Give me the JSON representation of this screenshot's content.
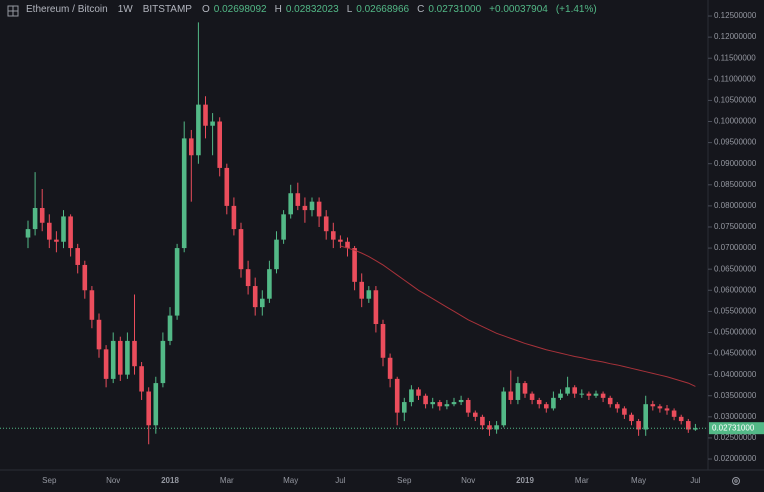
{
  "chart_data": {
    "type": "candlestick",
    "legend": {
      "symbol": "Ethereum / Bitcoin",
      "interval": "1W",
      "exchange": "BITSTAMP",
      "open_label": "O",
      "open": "0.02698092",
      "high_label": "H",
      "high": "0.02832023",
      "low_label": "L",
      "low": "0.02668966",
      "close_label": "C",
      "close": "0.02731000",
      "change": "+0.00037904",
      "change_pct": "(+1.41%)"
    },
    "categories": [
      null,
      null,
      null,
      "Sep",
      null,
      null,
      null,
      null,
      null,
      null,
      null,
      null,
      "Nov",
      null,
      null,
      null,
      null,
      null,
      null,
      null,
      "2018",
      null,
      null,
      null,
      null,
      null,
      null,
      null,
      "Mar",
      null,
      null,
      null,
      null,
      null,
      null,
      null,
      null,
      "May",
      null,
      null,
      null,
      null,
      null,
      null,
      "Jul",
      null,
      null,
      null,
      null,
      null,
      null,
      null,
      null,
      "Sep",
      null,
      null,
      null,
      null,
      null,
      null,
      null,
      null,
      "Nov",
      null,
      null,
      null,
      null,
      null,
      null,
      null,
      "2019",
      null,
      null,
      null,
      null,
      null,
      null,
      null,
      "Mar",
      null,
      null,
      null,
      null,
      null,
      null,
      null,
      "May",
      null,
      null,
      null,
      null,
      null,
      null,
      null,
      "Jul"
    ],
    "open": [
      0.0725,
      0.0745,
      0.0795,
      0.076,
      0.072,
      0.0715,
      0.0775,
      0.07,
      0.066,
      0.06,
      0.053,
      0.046,
      0.039,
      0.048,
      0.04,
      0.048,
      0.042,
      0.036,
      0.028,
      0.038,
      0.048,
      0.054,
      0.07,
      0.096,
      0.092,
      0.104,
      0.099,
      0.1,
      0.089,
      0.08,
      0.0745,
      0.065,
      0.061,
      0.056,
      0.058,
      0.065,
      0.072,
      0.078,
      0.083,
      0.08,
      0.079,
      0.081,
      0.0775,
      0.074,
      0.072,
      0.0715,
      0.07,
      0.062,
      0.058,
      0.06,
      0.052,
      0.044,
      0.039,
      0.031,
      0.0335,
      0.0365,
      0.035,
      0.033,
      0.0335,
      0.0325,
      0.033,
      0.0335,
      0.034,
      0.031,
      0.03,
      0.028,
      0.027,
      0.028,
      0.036,
      0.034,
      0.038,
      0.0355,
      0.034,
      0.033,
      0.032,
      0.0345,
      0.0355,
      0.037,
      0.0355,
      0.0355,
      0.035,
      0.0355,
      0.0345,
      0.033,
      0.032,
      0.0305,
      0.029,
      0.027,
      0.033,
      0.0325,
      0.032,
      0.0315,
      0.03,
      0.029,
      0.02698092
    ],
    "high": [
      0.0765,
      0.088,
      0.084,
      0.078,
      0.074,
      0.079,
      0.078,
      0.071,
      0.067,
      0.061,
      0.0545,
      0.047,
      0.05,
      0.049,
      0.05,
      0.059,
      0.043,
      0.037,
      0.0395,
      0.05,
      0.056,
      0.071,
      0.1,
      0.098,
      0.1235,
      0.106,
      0.102,
      0.101,
      0.09,
      0.082,
      0.076,
      0.067,
      0.063,
      0.06,
      0.067,
      0.074,
      0.079,
      0.085,
      0.0855,
      0.082,
      0.082,
      0.082,
      0.079,
      0.076,
      0.073,
      0.0725,
      0.0705,
      0.064,
      0.061,
      0.061,
      0.053,
      0.045,
      0.0395,
      0.0345,
      0.0375,
      0.037,
      0.0355,
      0.0345,
      0.034,
      0.034,
      0.0345,
      0.035,
      0.0345,
      0.0315,
      0.0305,
      0.029,
      0.029,
      0.037,
      0.041,
      0.0395,
      0.0385,
      0.036,
      0.0345,
      0.0335,
      0.036,
      0.0365,
      0.0395,
      0.0375,
      0.0365,
      0.036,
      0.0362,
      0.036,
      0.035,
      0.0335,
      0.0325,
      0.031,
      0.0295,
      0.035,
      0.0338,
      0.033,
      0.0328,
      0.032,
      0.0305,
      0.0295,
      0.02832023
    ],
    "low": [
      0.07,
      0.073,
      0.074,
      0.07,
      0.069,
      0.07,
      0.068,
      0.064,
      0.058,
      0.051,
      0.044,
      0.037,
      0.038,
      0.0385,
      0.039,
      0.04,
      0.034,
      0.0235,
      0.026,
      0.037,
      0.047,
      0.053,
      0.069,
      0.081,
      0.09,
      0.096,
      0.092,
      0.087,
      0.078,
      0.073,
      0.063,
      0.059,
      0.054,
      0.054,
      0.057,
      0.064,
      0.071,
      0.077,
      0.079,
      0.076,
      0.0775,
      0.075,
      0.072,
      0.07,
      0.07,
      0.068,
      0.06,
      0.056,
      0.057,
      0.05,
      0.042,
      0.037,
      0.028,
      0.029,
      0.0325,
      0.034,
      0.032,
      0.032,
      0.0315,
      0.0318,
      0.0325,
      0.0328,
      0.03,
      0.029,
      0.027,
      0.0255,
      0.026,
      0.0275,
      0.033,
      0.033,
      0.0345,
      0.033,
      0.032,
      0.031,
      0.0315,
      0.034,
      0.035,
      0.0345,
      0.0345,
      0.034,
      0.0345,
      0.0335,
      0.0322,
      0.031,
      0.0295,
      0.028,
      0.0255,
      0.0255,
      0.0315,
      0.031,
      0.0305,
      0.0292,
      0.0282,
      0.0262,
      0.02668966
    ],
    "close": [
      0.0745,
      0.0795,
      0.076,
      0.072,
      0.0715,
      0.0775,
      0.07,
      0.066,
      0.06,
      0.053,
      0.046,
      0.039,
      0.048,
      0.04,
      0.048,
      0.042,
      0.036,
      0.028,
      0.038,
      0.048,
      0.054,
      0.07,
      0.096,
      0.092,
      0.104,
      0.099,
      0.1,
      0.089,
      0.08,
      0.0745,
      0.065,
      0.061,
      0.056,
      0.058,
      0.065,
      0.072,
      0.078,
      0.083,
      0.08,
      0.079,
      0.081,
      0.0775,
      0.074,
      0.072,
      0.0715,
      0.07,
      0.062,
      0.058,
      0.06,
      0.052,
      0.044,
      0.039,
      0.031,
      0.0335,
      0.0365,
      0.035,
      0.033,
      0.0335,
      0.0325,
      0.033,
      0.0335,
      0.034,
      0.031,
      0.03,
      0.028,
      0.027,
      0.028,
      0.036,
      0.034,
      0.038,
      0.0355,
      0.034,
      0.033,
      0.032,
      0.0345,
      0.0355,
      0.037,
      0.0355,
      0.0355,
      0.035,
      0.0355,
      0.0345,
      0.033,
      0.032,
      0.0305,
      0.029,
      0.027,
      0.033,
      0.0325,
      0.032,
      0.0315,
      0.03,
      0.029,
      0.027,
      0.02731
    ],
    "up_color": "#53b987",
    "down_color": "#eb4d5c",
    "ma": {
      "color": "#a8323a",
      "values": [
        null,
        null,
        null,
        null,
        null,
        null,
        null,
        null,
        null,
        null,
        null,
        null,
        null,
        null,
        null,
        null,
        null,
        null,
        null,
        null,
        null,
        null,
        null,
        null,
        null,
        null,
        null,
        null,
        null,
        null,
        null,
        null,
        null,
        null,
        null,
        null,
        null,
        null,
        null,
        null,
        null,
        null,
        null,
        null,
        0.0705,
        0.07,
        0.0695,
        0.0688,
        0.068,
        0.067,
        0.066,
        0.0648,
        0.0636,
        0.0624,
        0.0612,
        0.06,
        0.059,
        0.058,
        0.057,
        0.056,
        0.055,
        0.054,
        0.053,
        0.0522,
        0.0514,
        0.0506,
        0.0498,
        0.0492,
        0.0486,
        0.048,
        0.0474,
        0.0469,
        0.0464,
        0.0459,
        0.0455,
        0.0451,
        0.0447,
        0.0443,
        0.044,
        0.0436,
        0.0433,
        0.043,
        0.0426,
        0.0423,
        0.0419,
        0.0415,
        0.0411,
        0.0407,
        0.0403,
        0.0399,
        0.0395,
        0.039,
        0.0385,
        0.038,
        0.0372
      ]
    },
    "ylim": [
      0.0174,
      0.1288
    ],
    "yticks": [
      {
        "value": 0.02,
        "label": "0.02000000"
      },
      {
        "value": 0.025,
        "label": "0.02500000"
      },
      {
        "value": 0.03,
        "label": "0.03000000"
      },
      {
        "value": 0.035,
        "label": "0.03500000"
      },
      {
        "value": 0.04,
        "label": "0.04000000"
      },
      {
        "value": 0.045,
        "label": "0.04500000"
      },
      {
        "value": 0.05,
        "label": "0.05000000"
      },
      {
        "value": 0.055,
        "label": "0.05500000"
      },
      {
        "value": 0.06,
        "label": "0.06000000"
      },
      {
        "value": 0.065,
        "label": "0.06500000"
      },
      {
        "value": 0.07,
        "label": "0.07000000"
      },
      {
        "value": 0.075,
        "label": "0.07500000"
      },
      {
        "value": 0.08,
        "label": "0.08000000"
      },
      {
        "value": 0.085,
        "label": "0.08500000"
      },
      {
        "value": 0.09,
        "label": "0.09000000"
      },
      {
        "value": 0.095,
        "label": "0.09500000"
      },
      {
        "value": 0.1,
        "label": "0.10000000"
      },
      {
        "value": 0.105,
        "label": "0.10500000"
      },
      {
        "value": 0.11,
        "label": "0.11000000"
      },
      {
        "value": 0.115,
        "label": "0.11500000"
      },
      {
        "value": 0.12,
        "label": "0.12000000"
      },
      {
        "value": 0.125,
        "label": "0.12500000"
      }
    ],
    "last_price": {
      "value": 0.02731,
      "label": "0.02731000"
    }
  }
}
